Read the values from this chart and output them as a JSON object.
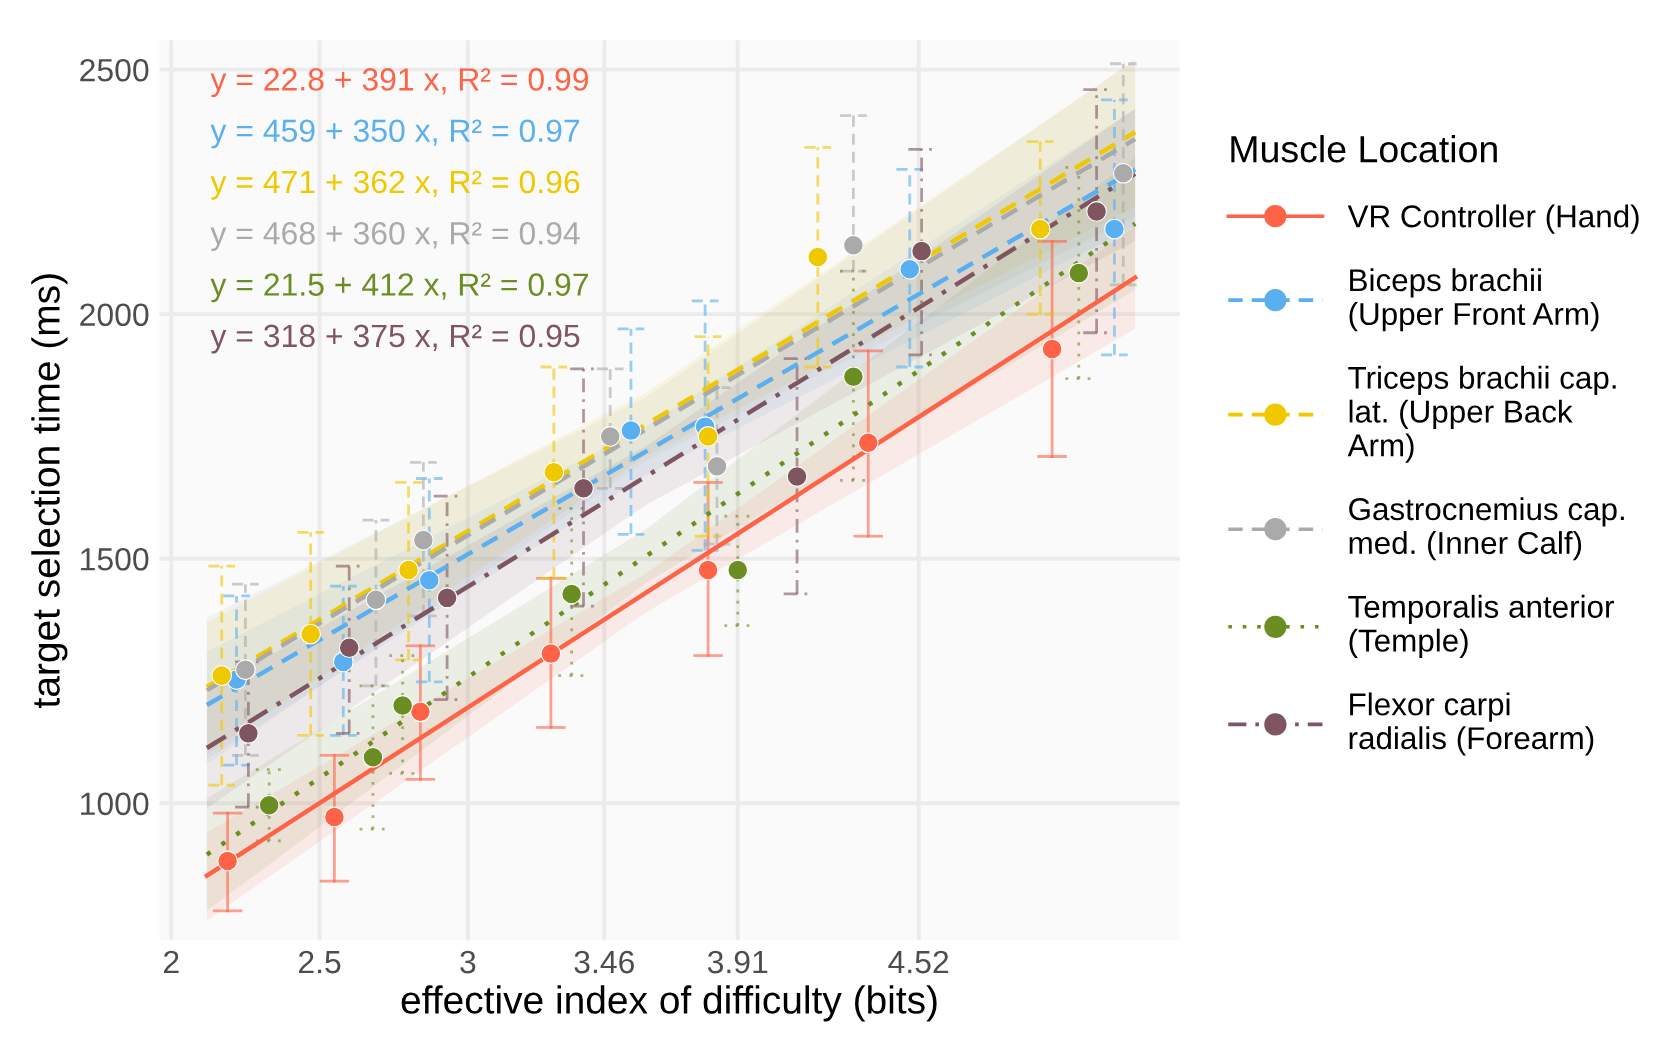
{
  "chart_data": {
    "type": "scatter",
    "xlabel": "effective index of difficulty (bits)",
    "ylabel": "target selection time (ms)",
    "legend_title": "Muscle Location",
    "xlim": [
      1.96,
      5.4
    ],
    "xticks": [
      2,
      2.5,
      3,
      3.46,
      3.91,
      4.52
    ],
    "ylim": [
      720,
      2560
    ],
    "yticks": [
      1000,
      1500,
      2000,
      2500
    ],
    "grid": true,
    "legend": "right",
    "marker": "circle",
    "annotations": [
      "y = 22.8 + 391 x, R² = 0.99",
      "y = 459 + 350 x, R² = 0.97",
      "y = 471 + 362 x, R² = 0.96",
      "y = 468 + 360 x, R² = 0.94",
      "y = 21.5 + 412 x, R² = 0.97",
      "y = 318 + 375 x, R² = 0.95"
    ],
    "series": [
      {
        "name": "VR Controller (Hand)",
        "color": "#ff6347",
        "line_style": "solid",
        "x": [
          2.19,
          2.55,
          2.84,
          3.28,
          3.81,
          4.35,
          4.97
        ],
        "values": [
          882,
          972,
          1187,
          1306,
          1477,
          1737,
          1929
        ],
        "errors": [
          [
            780,
            980
          ],
          [
            841,
            1098
          ],
          [
            1049,
            1322
          ],
          [
            1155,
            1460
          ],
          [
            1302,
            1656
          ],
          [
            1546,
            1925
          ],
          [
            1709,
            2149
          ]
        ]
      },
      {
        "name": "Biceps brachii (Upper Front Arm)",
        "color": "#5aaff0",
        "line_style": "dashed",
        "x": [
          2.22,
          2.58,
          2.87,
          3.55,
          3.8,
          4.49,
          5.18
        ],
        "values": [
          1253,
          1289,
          1456,
          1762,
          1770,
          2092,
          2174
        ],
        "errors": [
          [
            1078,
            1424
          ],
          [
            1139,
            1444
          ],
          [
            1248,
            1664
          ],
          [
            1550,
            1970
          ],
          [
            1517,
            2027
          ],
          [
            1892,
            2296
          ],
          [
            1917,
            2438
          ]
        ]
      },
      {
        "name": "Triceps brachii cap. lat. (Upper Back Arm)",
        "color": "#f0c800",
        "line_style": "dashed",
        "x": [
          2.17,
          2.47,
          2.8,
          3.29,
          3.81,
          4.18,
          4.93
        ],
        "values": [
          1261,
          1346,
          1477,
          1677,
          1750,
          2117,
          2174
        ],
        "errors": [
          [
            1037,
            1485
          ],
          [
            1139,
            1554
          ],
          [
            1293,
            1656
          ],
          [
            1460,
            1892
          ],
          [
            1546,
            1954
          ],
          [
            1892,
            2341
          ],
          [
            2000,
            2353
          ]
        ]
      },
      {
        "name": "Gastrocnemius cap. med. (Inner Calf)",
        "color": "#aaaaaa",
        "line_style": "dashed",
        "x": [
          2.25,
          2.69,
          2.85,
          3.48,
          3.84,
          4.3,
          5.21
        ],
        "values": [
          1273,
          1416,
          1538,
          1750,
          1689,
          2141,
          2288
        ],
        "errors": [
          [
            1098,
            1448
          ],
          [
            1240,
            1579
          ],
          [
            1383,
            1697
          ],
          [
            1644,
            1888
          ],
          [
            1530,
            1850
          ],
          [
            2088,
            2406
          ],
          [
            2060,
            2512
          ]
        ]
      },
      {
        "name": "Temporalis anterior (Temple)",
        "color": "#6b8e23",
        "line_style": "dotted",
        "x": [
          2.33,
          2.68,
          2.78,
          3.35,
          3.91,
          4.3,
          5.06
        ],
        "values": [
          996,
          1094,
          1200,
          1428,
          1477,
          1872,
          2084
        ],
        "errors": [
          [
            923,
            1069
          ],
          [
            947,
            1240
          ],
          [
            1061,
            1302
          ],
          [
            1261,
            1603
          ],
          [
            1363,
            1587
          ],
          [
            1660,
            2088
          ],
          [
            1868,
            2300
          ]
        ]
      },
      {
        "name": "Flexor carpi radialis (Forearm)",
        "color": "#7f5560",
        "line_style": "dashdot",
        "x": [
          2.26,
          2.6,
          2.93,
          3.39,
          4.11,
          4.53,
          5.12
        ],
        "values": [
          1143,
          1318,
          1420,
          1644,
          1668,
          2129,
          2210
        ],
        "errors": [
          [
            992,
            1289
          ],
          [
            1143,
            1485
          ],
          [
            1212,
            1628
          ],
          [
            1403,
            1888
          ],
          [
            1428,
            1909
          ],
          [
            1917,
            2337
          ],
          [
            1962,
            2459
          ]
        ]
      },
      {
        "type": "line",
        "marker": "none",
        "color": "#ff6347",
        "line_style": "solid",
        "x": [
          2.12,
          3.6,
          5.25
        ],
        "values": [
          852,
          1430,
          2075
        ],
        "lower": [
          760,
          1390,
          1970
        ],
        "upper": [
          940,
          1470,
          2180
        ]
      },
      {
        "type": "line",
        "marker": "none",
        "color": "#5aaff0",
        "line_style": "dashed",
        "x": [
          2.12,
          3.6,
          5.25
        ],
        "values": [
          1201,
          1719,
          2296
        ],
        "lower": [
          1090,
          1670,
          2180
        ],
        "upper": [
          1310,
          1770,
          2420
        ]
      },
      {
        "type": "line",
        "marker": "none",
        "color": "#f0c800",
        "line_style": "dashed",
        "x": [
          2.12,
          3.6,
          5.25
        ],
        "values": [
          1238,
          1774,
          2372
        ],
        "lower": [
          1100,
          1710,
          2220
        ],
        "upper": [
          1370,
          1840,
          2520
        ]
      },
      {
        "type": "line",
        "marker": "none",
        "color": "#aaaaaa",
        "line_style": "dashed",
        "x": [
          2.12,
          3.6,
          5.25
        ],
        "values": [
          1231,
          1764,
          2358
        ],
        "lower": [
          1080,
          1700,
          2200
        ],
        "upper": [
          1380,
          1830,
          2520
        ]
      },
      {
        "type": "line",
        "marker": "none",
        "color": "#6b8e23",
        "line_style": "dotted",
        "x": [
          2.12,
          3.6,
          5.25
        ],
        "values": [
          895,
          1505,
          2185
        ],
        "lower": [
          780,
          1450,
          2050
        ],
        "upper": [
          1010,
          1560,
          2320
        ]
      },
      {
        "type": "line",
        "marker": "none",
        "color": "#7f5560",
        "line_style": "dashdot",
        "x": [
          2.12,
          3.6,
          5.25
        ],
        "values": [
          1113,
          1668,
          2287
        ],
        "lower": [
          990,
          1610,
          2150
        ],
        "upper": [
          1230,
          1730,
          2420
        ]
      }
    ]
  }
}
